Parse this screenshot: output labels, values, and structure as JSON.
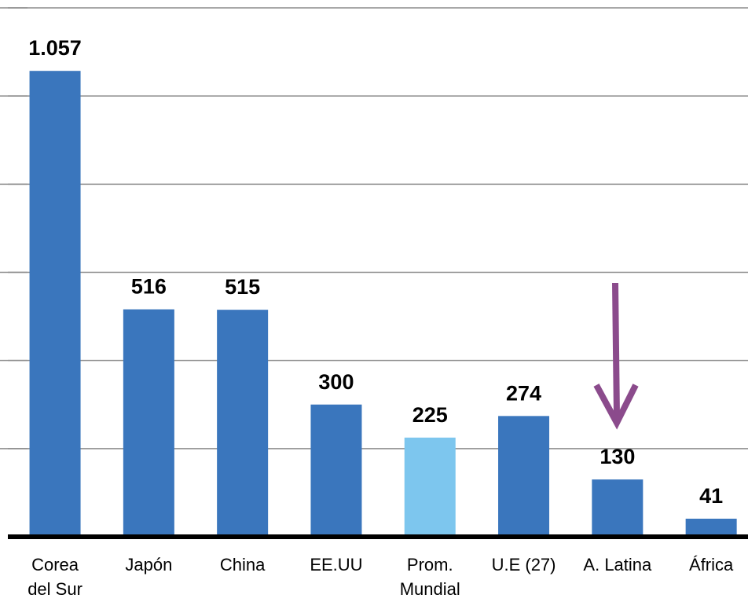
{
  "chart_data": {
    "type": "bar",
    "categories": [
      "Corea\ndel Sur",
      "Japón",
      "China",
      "EE.UU",
      "Prom.\nMundial",
      "U.E (27)",
      "A. Latina",
      "África"
    ],
    "values": [
      1057,
      516,
      515,
      300,
      225,
      274,
      130,
      41
    ],
    "value_labels": [
      "1.057",
      "516",
      "515",
      "300",
      "225",
      "274",
      "130",
      "41"
    ],
    "colors": [
      "#3a76bd",
      "#3a76bd",
      "#3a76bd",
      "#3a76bd",
      "#7dc6ee",
      "#3a76bd",
      "#3a76bd",
      "#3a76bd"
    ],
    "ylim": [
      0,
      1200
    ],
    "yticks": [
      0,
      200,
      400,
      600,
      800,
      1000,
      1200
    ],
    "grid": true
  }
}
